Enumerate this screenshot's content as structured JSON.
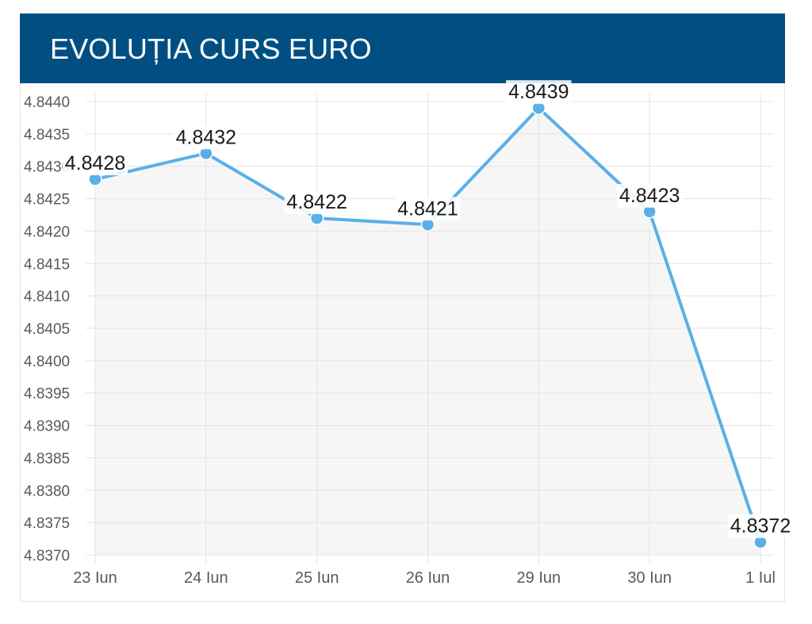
{
  "header": {
    "title": "EVOLUȚIA CURS EURO"
  },
  "colors": {
    "header_bg": "#014f82",
    "line": "#5aafe8",
    "area": "#f6f6f6",
    "grid": "#e3e3e3"
  },
  "chart_data": {
    "type": "line",
    "categories": [
      "23 Iun",
      "24 Iun",
      "25 Iun",
      "26 Iun",
      "29 Iun",
      "30 Iun",
      "1 Iul"
    ],
    "values": [
      4.8428,
      4.8432,
      4.8422,
      4.8421,
      4.8439,
      4.8423,
      4.8372
    ],
    "data_labels": [
      "4.8428",
      "4.8432",
      "4.8422",
      "4.8421",
      "4.8439",
      "4.8423",
      "4.8372"
    ],
    "yticks": [
      "4.8370",
      "4.8375",
      "4.8380",
      "4.8385",
      "4.8390",
      "4.8395",
      "4.8400",
      "4.8405",
      "4.8410",
      "4.8415",
      "4.8420",
      "4.8425",
      "4.8430",
      "4.8435",
      "4.8440"
    ],
    "ylim": [
      4.837,
      4.844
    ],
    "title": "",
    "xlabel": "",
    "ylabel": "",
    "grid": true,
    "area_fill": true
  }
}
